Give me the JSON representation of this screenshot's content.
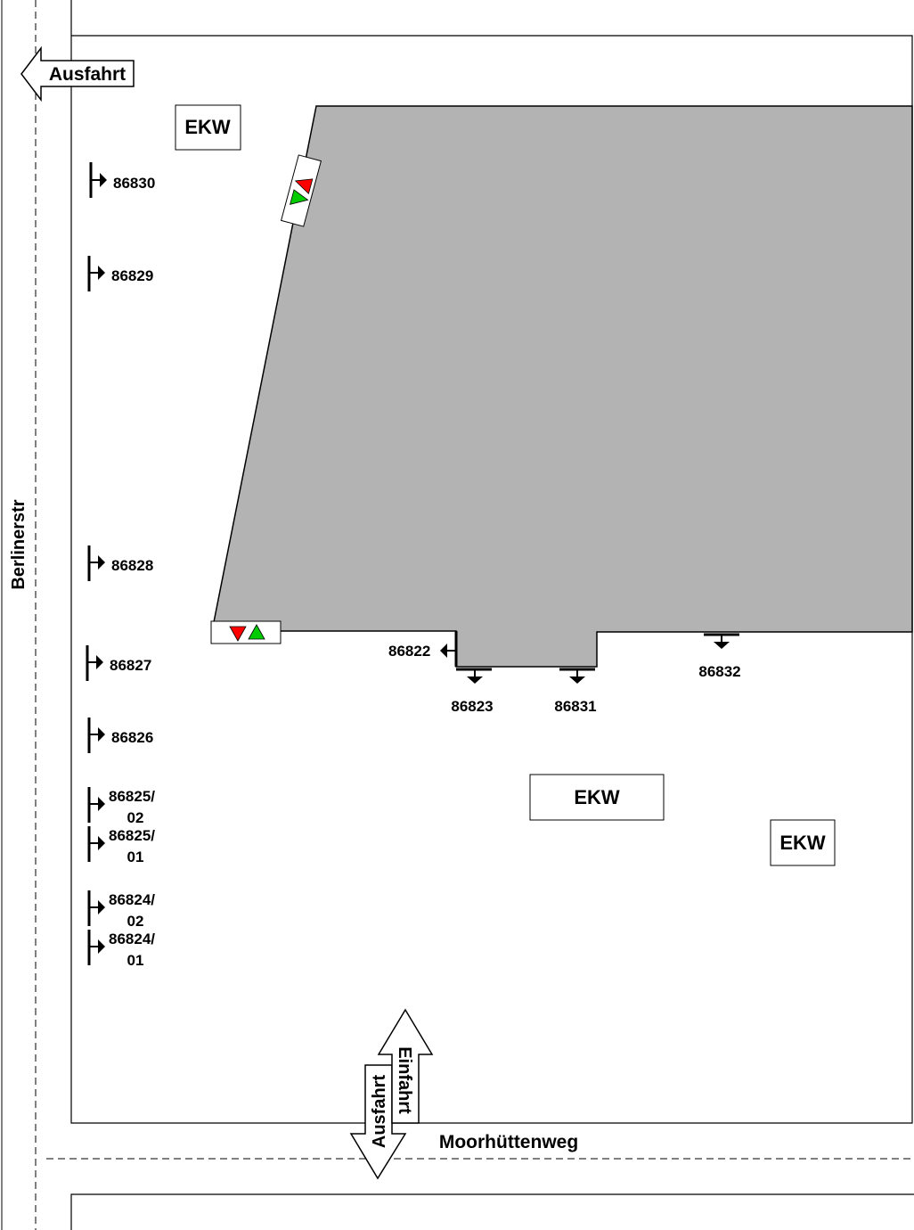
{
  "streets": {
    "west": "Berlinerstr",
    "south": "Moorhüttenweg"
  },
  "exits": {
    "top_left": "Ausfahrt",
    "bottom_out": "Ausfahrt",
    "bottom_in": "Einfahrt"
  },
  "ekw_labels": {
    "top_left": "EKW",
    "center": "EKW",
    "right": "EKW"
  },
  "west_markers": [
    {
      "label": "86830"
    },
    {
      "label": "86829"
    },
    {
      "label": "86828"
    },
    {
      "label": "86827"
    },
    {
      "label": "86826"
    },
    {
      "label_l1": "86825/",
      "label_l2": "02"
    },
    {
      "label_l1": "86825/",
      "label_l2": "01"
    },
    {
      "label_l1": "86824/",
      "label_l2": "02"
    },
    {
      "label_l1": "86824/",
      "label_l2": "01"
    }
  ],
  "building_markers": {
    "m86822": "86822",
    "m86823": "86823",
    "m86831": "86831",
    "m86832": "86832"
  },
  "colors": {
    "building": "#b3b3b3",
    "signal_red": "#ff0000",
    "signal_green": "#00cc00"
  },
  "icons": {
    "traffic_signal": "traffic-signal-icon",
    "arrow": "arrow-icon"
  }
}
